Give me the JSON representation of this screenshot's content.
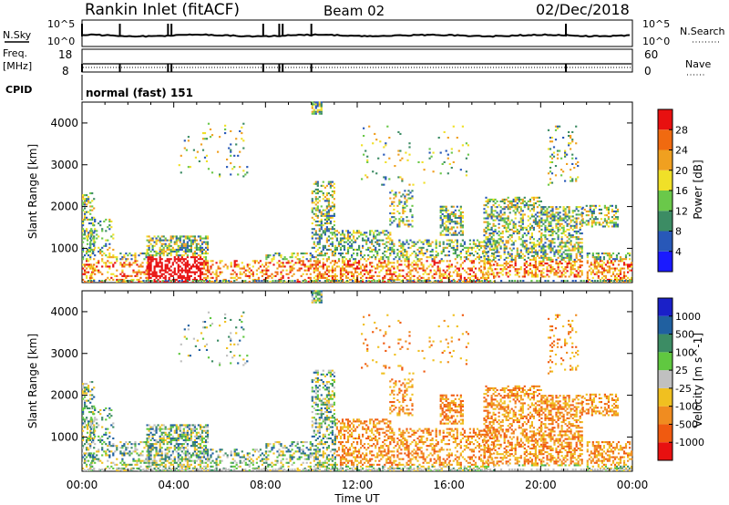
{
  "header": {
    "station": "Rankin Inlet (fitACF)",
    "beam": "Beam 02",
    "date": "02/Dec/2018"
  },
  "noise_panel": {
    "left_label": "N.Sky",
    "right_label": "N.Search",
    "left_ticks": [
      "10^5",
      "10^0"
    ],
    "right_ticks": [
      "10^5",
      "10^0"
    ]
  },
  "freq_panel": {
    "left_label_1": "Freq.",
    "left_label_2": "[MHz]",
    "right_label": "Nave",
    "left_ticks": [
      "18",
      "8"
    ],
    "right_ticks": [
      "60",
      "0"
    ]
  },
  "cpid_panel": {
    "label": "CPID",
    "text": "normal (fast) 151"
  },
  "chart_data": [
    {
      "type": "heatmap",
      "title": "",
      "xlabel": "Time UT",
      "ylabel": "Slant Range [km]",
      "xticks": [
        "00:00",
        "04:00",
        "08:00",
        "12:00",
        "16:00",
        "20:00",
        "00:00"
      ],
      "yticks": [
        "1000",
        "2000",
        "3000",
        "4000"
      ],
      "xlim_hours": [
        0,
        24
      ],
      "ylim_km": [
        180,
        4500
      ],
      "colorbar": {
        "label": "Power [dB]",
        "ticks": [
          "4",
          "8",
          "12",
          "16",
          "20",
          "24",
          "28"
        ],
        "colors": [
          "#1a1aff",
          "#2858b8",
          "#3c8c64",
          "#6ac84a",
          "#f0e028",
          "#f0a020",
          "#f06a10",
          "#e81010"
        ]
      }
    },
    {
      "type": "heatmap",
      "title": "",
      "xlabel": "Time UT",
      "ylabel": "Slant Range [km]",
      "xticks": [
        "00:00",
        "04:00",
        "08:00",
        "12:00",
        "16:00",
        "20:00",
        "00:00"
      ],
      "yticks": [
        "1000",
        "2000",
        "3000",
        "4000"
      ],
      "xlim_hours": [
        0,
        24
      ],
      "ylim_km": [
        180,
        4500
      ],
      "colorbar": {
        "label": "Velocity [m s^-1]",
        "ticks": [
          "1000",
          "500",
          "100",
          "25",
          "-25",
          "-100",
          "-500",
          "-1000"
        ],
        "colors": [
          "#1a20c8",
          "#2060a0",
          "#3c8c64",
          "#60c840",
          "#c0c0c0",
          "#f0c020",
          "#f08c20",
          "#f05a10",
          "#e81010"
        ]
      }
    }
  ]
}
